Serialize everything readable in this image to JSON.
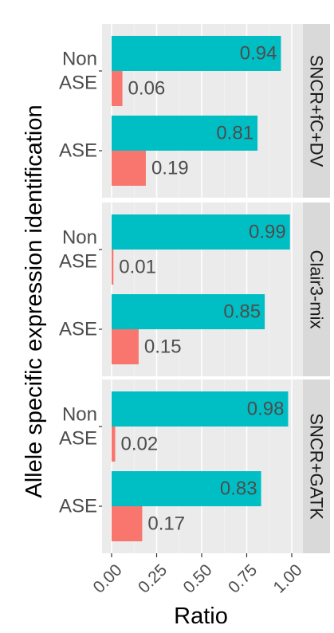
{
  "chart_data": {
    "type": "bar",
    "orientation": "horizontal",
    "stacking": "dodged",
    "xlabel": "Ratio",
    "ylabel": "Allele specific expression identification",
    "xlim": [
      0,
      1
    ],
    "x_ticks": [
      "0.00",
      "0.25",
      "0.50",
      "0.75",
      "1.00"
    ],
    "grid": true,
    "legend": "none",
    "colors": {
      "teal": "#00BFC4",
      "salmon": "#F8766D",
      "panel_bg": "#EBEBEB",
      "strip_bg": "#D9D9D9"
    },
    "panels": [
      {
        "strip": "SNCR+fC+DV",
        "groups": [
          {
            "label_lines": [
              "Non",
              "ASE"
            ],
            "teal": 0.94,
            "salmon": 0.06,
            "teal_label": "0.94",
            "salmon_label": "0.06"
          },
          {
            "label_lines": [
              "ASE"
            ],
            "teal": 0.81,
            "salmon": 0.19,
            "teal_label": "0.81",
            "salmon_label": "0.19"
          }
        ]
      },
      {
        "strip": "Clair3-mix",
        "groups": [
          {
            "label_lines": [
              "Non",
              "ASE"
            ],
            "teal": 0.99,
            "salmon": 0.01,
            "teal_label": "0.99",
            "salmon_label": "0.01"
          },
          {
            "label_lines": [
              "ASE"
            ],
            "teal": 0.85,
            "salmon": 0.15,
            "teal_label": "0.85",
            "salmon_label": "0.15"
          }
        ]
      },
      {
        "strip": "SNCR+GATK",
        "groups": [
          {
            "label_lines": [
              "Non",
              "ASE"
            ],
            "teal": 0.98,
            "salmon": 0.02,
            "teal_label": "0.98",
            "salmon_label": "0.02"
          },
          {
            "label_lines": [
              "ASE"
            ],
            "teal": 0.83,
            "salmon": 0.17,
            "teal_label": "0.83",
            "salmon_label": "0.17"
          }
        ]
      }
    ]
  }
}
